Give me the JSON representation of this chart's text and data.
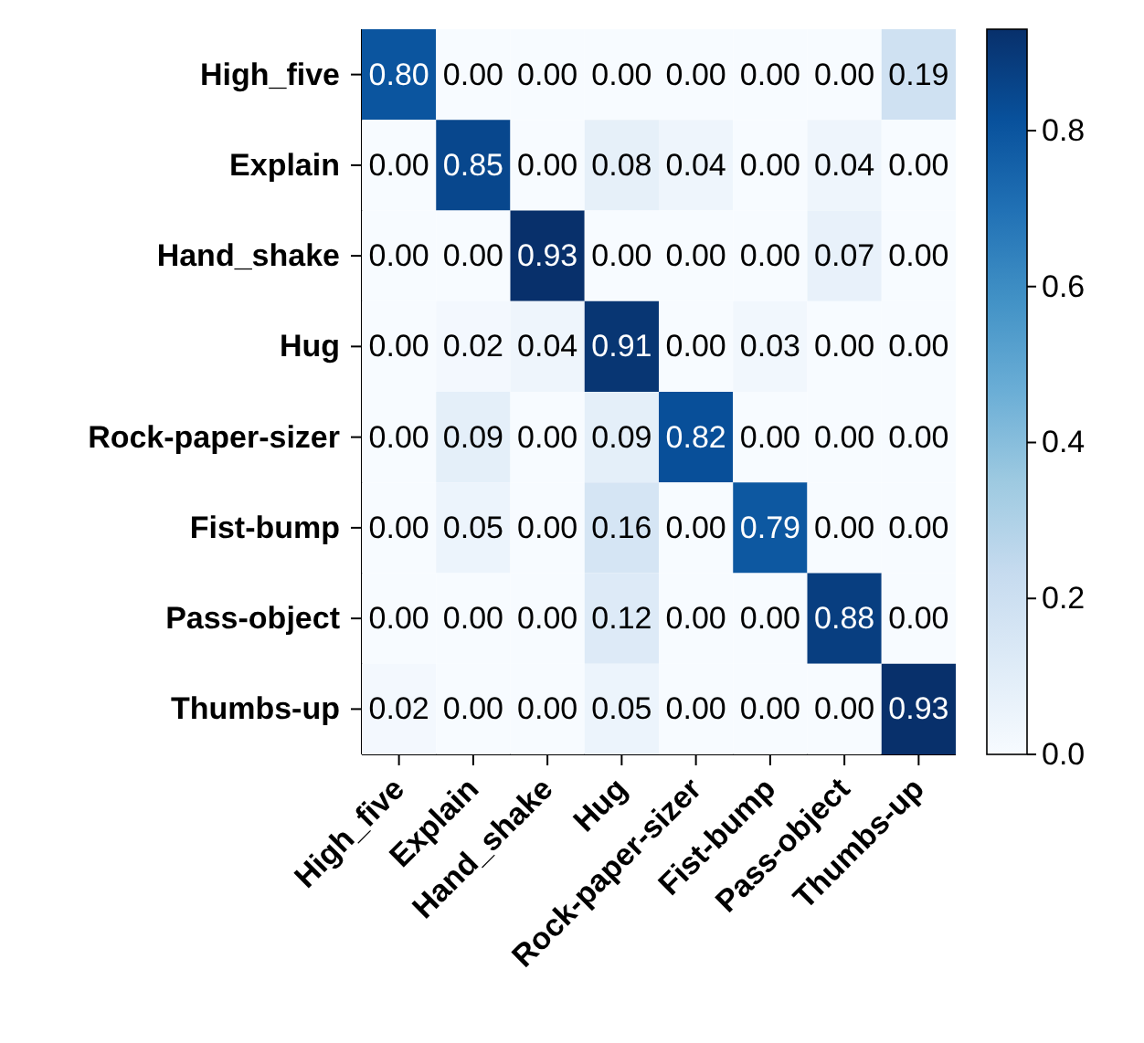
{
  "chart_data": {
    "type": "heatmap",
    "categories": [
      "High_five",
      "Explain",
      "Hand_shake",
      "Hug",
      "Rock-paper-sizer",
      "Fist-bump",
      "Pass-object",
      "Thumbs-up"
    ],
    "y_categories": [
      "High_five",
      "Explain",
      "Hand_shake",
      "Hug",
      "Rock-paper-sizer",
      "Fist-bump",
      "Pass-object",
      "Thumbs-up"
    ],
    "cells": [
      [
        0.8,
        0,
        0,
        0,
        0,
        0,
        0,
        0.19
      ],
      [
        0,
        0.85,
        0,
        0.08,
        0.04,
        0,
        0.04,
        0
      ],
      [
        0,
        0,
        0.93,
        0,
        0,
        0,
        0.07,
        0
      ],
      [
        0,
        0.02,
        0.04,
        0.91,
        0,
        0.03,
        0,
        0
      ],
      [
        0,
        0.09,
        0,
        0.09,
        0.82,
        0,
        0,
        0
      ],
      [
        0,
        0.05,
        0,
        0.16,
        0,
        0.79,
        0,
        0
      ],
      [
        0,
        0,
        0,
        0.12,
        0,
        0,
        0.88,
        0
      ],
      [
        0.02,
        0,
        0,
        0.05,
        0,
        0,
        0,
        0.93
      ]
    ],
    "cell_labels": [
      [
        "0.80",
        "0.00",
        "0.00",
        "0.00",
        "0.00",
        "0.00",
        "0.00",
        "0.19"
      ],
      [
        "0.00",
        "0.85",
        "0.00",
        "0.08",
        "0.04",
        "0.00",
        "0.04",
        "0.00"
      ],
      [
        "0.00",
        "0.00",
        "0.93",
        "0.00",
        "0.00",
        "0.00",
        "0.07",
        "0.00"
      ],
      [
        "0.00",
        "0.02",
        "0.04",
        "0.91",
        "0.00",
        "0.03",
        "0.00",
        "0.00"
      ],
      [
        "0.00",
        "0.09",
        "0.00",
        "0.09",
        "0.82",
        "0.00",
        "0.00",
        "0.00"
      ],
      [
        "0.00",
        "0.05",
        "0.00",
        "0.16",
        "0.00",
        "0.79",
        "0.00",
        "0.00"
      ],
      [
        "0.00",
        "0.00",
        "0.00",
        "0.12",
        "0.00",
        "0.00",
        "0.88",
        "0.00"
      ],
      [
        "0.02",
        "0.00",
        "0.00",
        "0.05",
        "0.00",
        "0.00",
        "0.00",
        "0.93"
      ]
    ],
    "clim": [
      0,
      0.93
    ],
    "cticks": [
      {
        "value": 0,
        "label": "0.0"
      },
      {
        "value": 0.2,
        "label": "0.2"
      },
      {
        "value": 0.4,
        "label": "0.4"
      },
      {
        "value": 0.6,
        "label": "0.6"
      },
      {
        "value": 0.8,
        "label": "0.8"
      }
    ]
  }
}
